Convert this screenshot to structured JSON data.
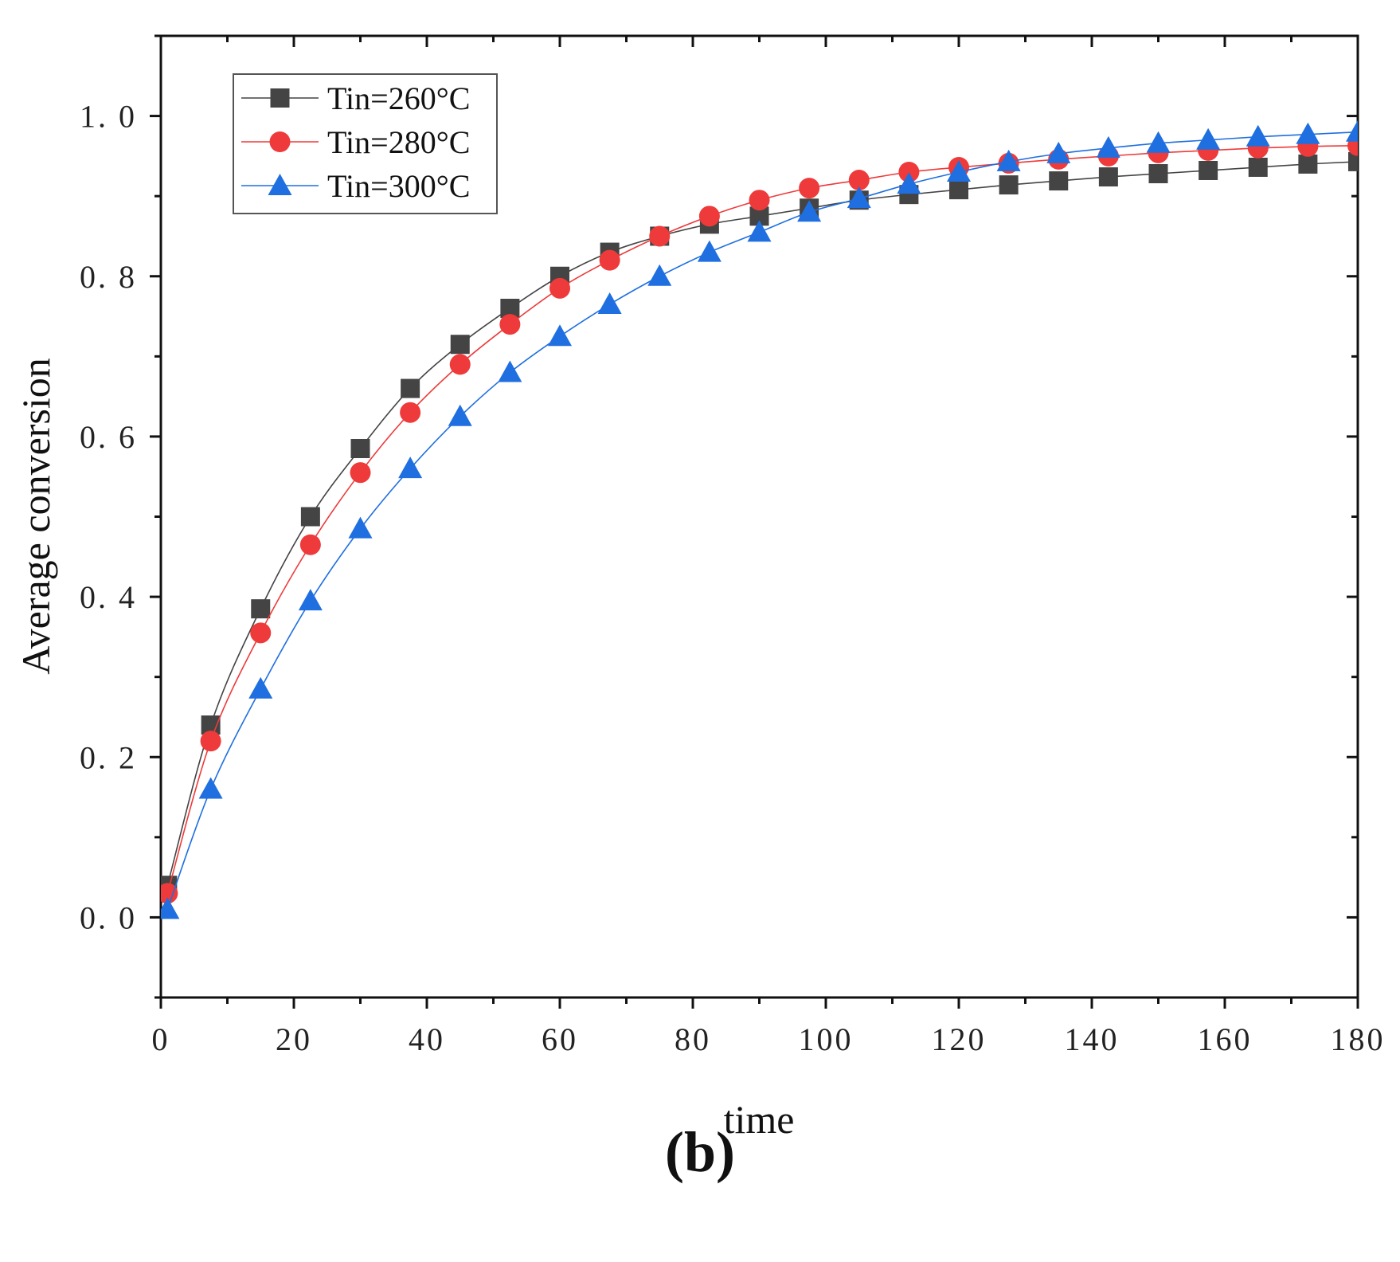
{
  "chart_data": {
    "type": "line",
    "title": "",
    "xlabel": "time",
    "ylabel": "Average conversion",
    "xlim": [
      0,
      180
    ],
    "ylim": [
      -0.1,
      1.1
    ],
    "x_ticks": [
      0,
      20,
      40,
      60,
      80,
      100,
      120,
      140,
      160,
      180
    ],
    "x_tick_labels": [
      "0",
      "20",
      "40",
      "60",
      "80",
      "100",
      "120",
      "140",
      "160",
      "180"
    ],
    "y_ticks": [
      0.0,
      0.2,
      0.4,
      0.6,
      0.8,
      1.0
    ],
    "y_tick_labels": [
      "0. 0",
      "0. 2",
      "0. 4",
      "0. 6",
      "0. 8",
      "1. 0"
    ],
    "grid": false,
    "legend_position": "top-left",
    "x": [
      1,
      7.5,
      15,
      22.5,
      30,
      37.5,
      45,
      52.5,
      60,
      67.5,
      75,
      82.5,
      90,
      97.5,
      105,
      112.5,
      120,
      127.5,
      135,
      142.5,
      150,
      157.5,
      165,
      172.5,
      180
    ],
    "series": [
      {
        "name": "Tin=260°C",
        "color": "#444444",
        "marker": "square",
        "values": [
          0.04,
          0.24,
          0.385,
          0.5,
          0.585,
          0.66,
          0.715,
          0.76,
          0.8,
          0.83,
          0.85,
          0.865,
          0.875,
          0.885,
          0.895,
          0.902,
          0.908,
          0.914,
          0.919,
          0.924,
          0.928,
          0.932,
          0.936,
          0.94,
          0.943
        ]
      },
      {
        "name": "Tin=280°C",
        "color": "#ee3a3a",
        "marker": "circle",
        "values": [
          0.03,
          0.22,
          0.355,
          0.465,
          0.555,
          0.63,
          0.69,
          0.74,
          0.785,
          0.82,
          0.85,
          0.875,
          0.895,
          0.91,
          0.92,
          0.93,
          0.936,
          0.941,
          0.946,
          0.95,
          0.954,
          0.957,
          0.96,
          0.962,
          0.963
        ]
      },
      {
        "name": "Tin=300°C",
        "color": "#1f6fe0",
        "marker": "triangle",
        "values": [
          0.01,
          0.16,
          0.285,
          0.395,
          0.485,
          0.56,
          0.625,
          0.68,
          0.725,
          0.765,
          0.8,
          0.83,
          0.855,
          0.88,
          0.897,
          0.915,
          0.93,
          0.943,
          0.953,
          0.96,
          0.966,
          0.97,
          0.974,
          0.977,
          0.98
        ]
      }
    ],
    "panel_label": "(b)"
  }
}
